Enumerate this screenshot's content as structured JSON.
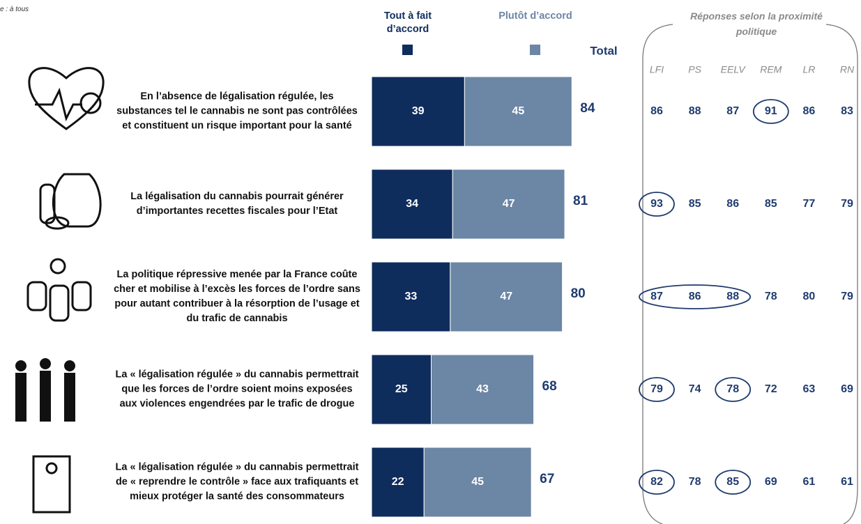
{
  "chart_data": {
    "type": "stacked-bar-horizontal",
    "note": "e : à tous",
    "categories": [
      "En l’absence de légalisation régulée, les substances tel le cannabis ne sont pas contrôlées et constituent un risque important pour la santé",
      "La légalisation du cannabis pourrait générer d’importantes recettes fiscales pour l’Etat",
      "La politique répressive menée par la France coûte cher et mobilise à l’excès les forces de l’ordre sans pour autant contribuer à la résorption de l’usage et du trafic de cannabis",
      "La « légalisation régulée » du cannabis permettrait que les forces de l’ordre soient moins exposées aux violences engendrées par le trafic de drogue",
      "La « légalisation régulée » du cannabis permettrait de « reprendre le contrôle » face aux trafiquants et mieux protéger la santé des consommateurs"
    ],
    "series": [
      {
        "name": "Tout à fait d’accord",
        "color": "#0f2d5c",
        "values": [
          39,
          34,
          33,
          25,
          22
        ]
      },
      {
        "name": "Plutôt d’accord",
        "color": "#6c86a5",
        "values": [
          45,
          47,
          47,
          43,
          45
        ]
      }
    ],
    "total_label": "Total",
    "totals": [
      84,
      81,
      80,
      68,
      67
    ],
    "breakdown": {
      "title": "Réponses selon la proximité politique",
      "columns": [
        "LFI",
        "PS",
        "EELV",
        "REM",
        "LR",
        "RN"
      ],
      "rows": [
        [
          86,
          88,
          87,
          91,
          86,
          83
        ],
        [
          93,
          85,
          86,
          85,
          77,
          79
        ],
        [
          87,
          86,
          88,
          78,
          80,
          79
        ],
        [
          79,
          74,
          78,
          72,
          63,
          69
        ],
        [
          82,
          78,
          85,
          69,
          61,
          61
        ]
      ],
      "highlight": [
        [
          [
            3,
            3
          ]
        ],
        [
          [
            0,
            0
          ]
        ],
        [
          [
            0,
            2
          ]
        ],
        [
          [
            0,
            0
          ],
          [
            2,
            2
          ]
        ],
        [
          [
            0,
            0
          ],
          [
            2,
            2
          ]
        ]
      ]
    }
  }
}
